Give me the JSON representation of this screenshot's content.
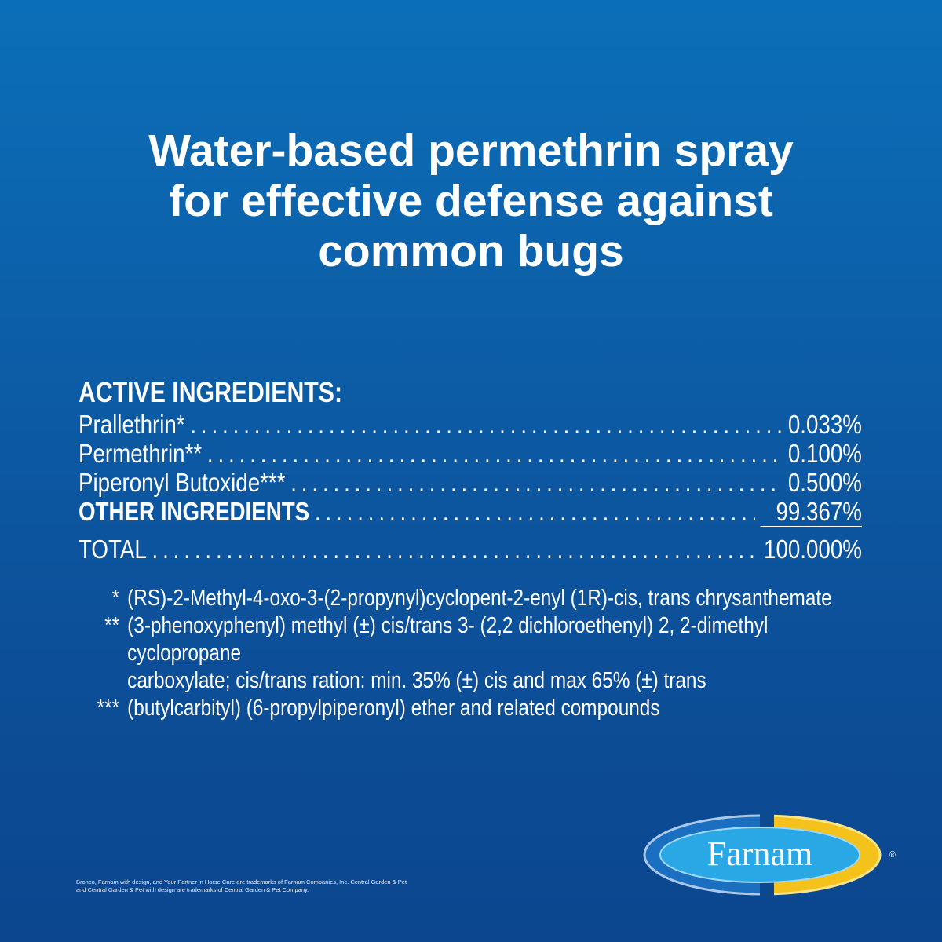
{
  "headline": [
    "Water-based permethrin spray",
    "for effective defense against",
    "common bugs"
  ],
  "ingredients": {
    "header": "ACTIVE INGREDIENTS:",
    "rows": [
      {
        "label": "Prallethrin*",
        "value": "0.033%"
      },
      {
        "label": "Permethrin**",
        "value": "0.100%"
      },
      {
        "label": "Piperonyl Butoxide***",
        "value": "0.500%"
      },
      {
        "label": "OTHER INGREDIENTS",
        "value": "99.367%"
      },
      {
        "label": "TOTAL",
        "value": "100.000%"
      }
    ]
  },
  "footnotes": [
    {
      "marker": "*",
      "text": "(RS)-2-Methyl-4-oxo-3-(2-propynyl)cyclopent-2-enyl (1R)-cis, trans chrysanthemate"
    },
    {
      "marker": "**",
      "text": "(3-phenoxyphenyl) methyl (±) cis/trans 3- (2,2 dichloroethenyl) 2, 2-dimethyl cyclopropane"
    },
    {
      "marker": "",
      "text": "carboxylate; cis/trans ration: min. 35% (±) cis and max 65% (±) trans"
    },
    {
      "marker": "***",
      "text": "(butylcarbityl) (6-propylpiperonyl) ether and related compounds"
    }
  ],
  "fine_print": [
    "Bronco, Farnam with design, and Your Partner in Horse Care are trademarks of Farnam Companies, Inc. Central Garden & Pet",
    "and Central Garden & Pet with design are trademarks of Central Garden & Pet Company."
  ],
  "logo": {
    "text": "Farnam",
    "registered": "®",
    "colors": {
      "inner": "#2aa8e6",
      "left": "#1a6fc0",
      "right": "#f5c21b"
    }
  }
}
